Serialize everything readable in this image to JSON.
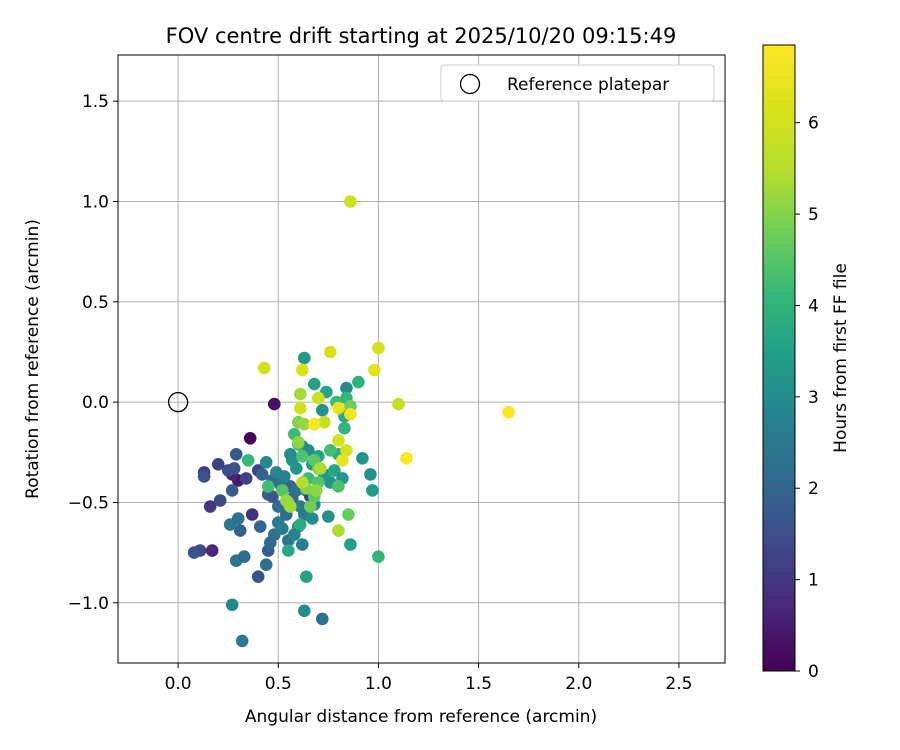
{
  "chart_data": {
    "type": "scatter",
    "title": "FOV centre drift starting at 2025/10/20 09:15:49",
    "xlabel": "Angular distance from reference (arcmin)",
    "ylabel": "Rotation from reference (arcmin)",
    "xlim": [
      -0.3,
      2.73
    ],
    "ylim": [
      -1.3,
      1.73
    ],
    "xticks": [
      0.0,
      0.5,
      1.0,
      1.5,
      2.0,
      2.5
    ],
    "xtick_labels": [
      "0.0",
      "0.5",
      "1.0",
      "1.5",
      "2.0",
      "2.5"
    ],
    "yticks": [
      -1.0,
      -0.5,
      0.0,
      0.5,
      1.0,
      1.5
    ],
    "ytick_labels": [
      "−1.0",
      "−0.5",
      "0.0",
      "0.5",
      "1.0",
      "1.5"
    ],
    "grid": true,
    "legend": {
      "position": "top-right",
      "entries": [
        {
          "label": "Reference platepar",
          "marker": "open-circle"
        }
      ]
    },
    "reference_point": {
      "x": 0.0,
      "y": 0.0
    },
    "colorbar": {
      "label": "Hours from first FF file",
      "min": 0,
      "max": 6.85,
      "ticks": [
        0,
        1,
        2,
        3,
        4,
        5,
        6
      ],
      "tick_labels": [
        "0",
        "1",
        "2",
        "3",
        "4",
        "5",
        "6"
      ],
      "colormap": "viridis"
    },
    "points": [
      {
        "x": 0.36,
        "y": -0.18,
        "t": 0.05
      },
      {
        "x": 0.48,
        "y": -0.01,
        "t": 0.3
      },
      {
        "x": 0.17,
        "y": -0.74,
        "t": 0.7
      },
      {
        "x": 0.3,
        "y": -0.39,
        "t": 0.4
      },
      {
        "x": 0.27,
        "y": -0.36,
        "t": 0.6
      },
      {
        "x": 0.13,
        "y": -0.35,
        "t": 1.1
      },
      {
        "x": 0.2,
        "y": -0.31,
        "t": 1.2
      },
      {
        "x": 0.16,
        "y": -0.52,
        "t": 1.0
      },
      {
        "x": 0.37,
        "y": -0.56,
        "t": 0.9
      },
      {
        "x": 0.34,
        "y": -0.38,
        "t": 1.2
      },
      {
        "x": 0.4,
        "y": -0.34,
        "t": 1.3
      },
      {
        "x": 0.11,
        "y": -0.74,
        "t": 1.4
      },
      {
        "x": 0.08,
        "y": -0.75,
        "t": 1.6
      },
      {
        "x": 0.21,
        "y": -0.49,
        "t": 1.4
      },
      {
        "x": 0.13,
        "y": -0.37,
        "t": 1.5
      },
      {
        "x": 0.25,
        "y": -0.34,
        "t": 1.5
      },
      {
        "x": 0.4,
        "y": -0.87,
        "t": 1.6
      },
      {
        "x": 0.27,
        "y": -0.44,
        "t": 1.8
      },
      {
        "x": 0.29,
        "y": -0.26,
        "t": 1.7
      },
      {
        "x": 0.28,
        "y": -0.33,
        "t": 1.6
      },
      {
        "x": 0.42,
        "y": -0.36,
        "t": 1.9
      },
      {
        "x": 0.45,
        "y": -0.46,
        "t": 2.0
      },
      {
        "x": 0.47,
        "y": -0.39,
        "t": 2.1
      },
      {
        "x": 0.5,
        "y": -0.52,
        "t": 2.2
      },
      {
        "x": 0.31,
        "y": -0.64,
        "t": 1.9
      },
      {
        "x": 0.29,
        "y": -0.79,
        "t": 2.4
      },
      {
        "x": 0.33,
        "y": -0.77,
        "t": 2.1
      },
      {
        "x": 0.26,
        "y": -0.61,
        "t": 2.5
      },
      {
        "x": 0.3,
        "y": -0.58,
        "t": 2.3
      },
      {
        "x": 0.41,
        "y": -0.62,
        "t": 2.0
      },
      {
        "x": 0.44,
        "y": -0.81,
        "t": 2.2
      },
      {
        "x": 0.45,
        "y": -0.74,
        "t": 1.8
      },
      {
        "x": 0.46,
        "y": -0.7,
        "t": 2.1
      },
      {
        "x": 0.48,
        "y": -0.66,
        "t": 2.3
      },
      {
        "x": 0.5,
        "y": -0.6,
        "t": 2.5
      },
      {
        "x": 0.52,
        "y": -0.63,
        "t": 2.6
      },
      {
        "x": 0.55,
        "y": -0.69,
        "t": 2.4
      },
      {
        "x": 0.54,
        "y": -0.56,
        "t": 2.2
      },
      {
        "x": 0.57,
        "y": -0.48,
        "t": 2.0
      },
      {
        "x": 0.56,
        "y": -0.42,
        "t": 1.9
      },
      {
        "x": 0.59,
        "y": -0.44,
        "t": 2.3
      },
      {
        "x": 0.47,
        "y": -0.47,
        "t": 1.7
      },
      {
        "x": 0.51,
        "y": -0.41,
        "t": 2.4
      },
      {
        "x": 0.53,
        "y": -0.37,
        "t": 2.7
      },
      {
        "x": 0.49,
        "y": -0.35,
        "t": 2.8
      },
      {
        "x": 0.44,
        "y": -0.3,
        "t": 2.9
      },
      {
        "x": 0.61,
        "y": -0.52,
        "t": 2.6
      },
      {
        "x": 0.63,
        "y": -0.56,
        "t": 2.5
      },
      {
        "x": 0.64,
        "y": -0.44,
        "t": 2.7
      },
      {
        "x": 0.66,
        "y": -0.47,
        "t": 1.2
      },
      {
        "x": 0.68,
        "y": -0.51,
        "t": 2.9
      },
      {
        "x": 0.6,
        "y": -0.62,
        "t": 3.0
      },
      {
        "x": 0.58,
        "y": -0.66,
        "t": 2.8
      },
      {
        "x": 0.62,
        "y": -0.71,
        "t": 2.7
      },
      {
        "x": 0.67,
        "y": -0.58,
        "t": 3.0
      },
      {
        "x": 0.27,
        "y": -1.01,
        "t": 2.9
      },
      {
        "x": 0.32,
        "y": -1.19,
        "t": 2.5
      },
      {
        "x": 0.63,
        "y": -1.04,
        "t": 3.0
      },
      {
        "x": 0.72,
        "y": -1.08,
        "t": 2.3
      },
      {
        "x": 0.56,
        "y": -0.26,
        "t": 3.0
      },
      {
        "x": 0.57,
        "y": -0.29,
        "t": 3.1
      },
      {
        "x": 0.59,
        "y": -0.33,
        "t": 3.2
      },
      {
        "x": 0.62,
        "y": -0.22,
        "t": 2.9
      },
      {
        "x": 0.65,
        "y": -0.24,
        "t": 3.0
      },
      {
        "x": 0.67,
        "y": -0.31,
        "t": 3.3
      },
      {
        "x": 0.7,
        "y": -0.27,
        "t": 3.5
      },
      {
        "x": 0.73,
        "y": -0.36,
        "t": 3.4
      },
      {
        "x": 0.76,
        "y": -0.4,
        "t": 3.2
      },
      {
        "x": 0.78,
        "y": -0.34,
        "t": 3.6
      },
      {
        "x": 0.75,
        "y": -0.57,
        "t": 3.1
      },
      {
        "x": 0.82,
        "y": -0.38,
        "t": 3.3
      },
      {
        "x": 0.86,
        "y": -0.71,
        "t": 3.5
      },
      {
        "x": 0.92,
        "y": -0.28,
        "t": 3.2
      },
      {
        "x": 0.96,
        "y": -0.36,
        "t": 3.1
      },
      {
        "x": 0.97,
        "y": -0.44,
        "t": 3.4
      },
      {
        "x": 0.63,
        "y": 0.22,
        "t": 3.3
      },
      {
        "x": 0.68,
        "y": 0.09,
        "t": 3.5
      },
      {
        "x": 0.72,
        "y": -0.04,
        "t": 3.2
      },
      {
        "x": 0.74,
        "y": 0.05,
        "t": 3.6
      },
      {
        "x": 0.84,
        "y": 0.07,
        "t": 3.0
      },
      {
        "x": 0.83,
        "y": -0.07,
        "t": 3.7
      },
      {
        "x": 0.8,
        "y": -0.26,
        "t": 3.8
      },
      {
        "x": 0.83,
        "y": -0.13,
        "t": 4.0
      },
      {
        "x": 0.84,
        "y": 0.02,
        "t": 4.1
      },
      {
        "x": 0.79,
        "y": 0.0,
        "t": 4.2
      },
      {
        "x": 0.9,
        "y": 0.1,
        "t": 4.0
      },
      {
        "x": 0.76,
        "y": -0.24,
        "t": 4.3
      },
      {
        "x": 0.64,
        "y": -0.87,
        "t": 3.6
      },
      {
        "x": 0.55,
        "y": -0.74,
        "t": 3.7
      },
      {
        "x": 1.0,
        "y": -0.77,
        "t": 4.0
      },
      {
        "x": 0.61,
        "y": -0.61,
        "t": 3.8
      },
      {
        "x": 0.58,
        "y": -0.16,
        "t": 4.2
      },
      {
        "x": 0.6,
        "y": -0.21,
        "t": 4.3
      },
      {
        "x": 0.62,
        "y": -0.27,
        "t": 4.4
      },
      {
        "x": 0.65,
        "y": -0.38,
        "t": 4.2
      },
      {
        "x": 0.7,
        "y": -0.4,
        "t": 4.5
      },
      {
        "x": 0.68,
        "y": -0.47,
        "t": 4.6
      },
      {
        "x": 0.35,
        "y": -0.29,
        "t": 4.1
      },
      {
        "x": 0.45,
        "y": -0.42,
        "t": 4.3
      },
      {
        "x": 0.52,
        "y": -0.44,
        "t": 4.5
      },
      {
        "x": 0.55,
        "y": -0.5,
        "t": 4.7
      },
      {
        "x": 0.66,
        "y": -0.52,
        "t": 4.8
      },
      {
        "x": 0.8,
        "y": -0.42,
        "t": 4.4
      },
      {
        "x": 0.85,
        "y": -0.56,
        "t": 4.7
      },
      {
        "x": 0.86,
        "y": -0.02,
        "t": 4.8
      },
      {
        "x": 0.7,
        "y": -0.33,
        "t": 4.9
      },
      {
        "x": 0.68,
        "y": -0.29,
        "t": 4.6
      },
      {
        "x": 0.64,
        "y": -0.43,
        "t": 5.0
      },
      {
        "x": 0.6,
        "y": -0.1,
        "t": 5.0
      },
      {
        "x": 0.6,
        "y": -0.2,
        "t": 5.1
      },
      {
        "x": 0.63,
        "y": -0.11,
        "t": 5.2
      },
      {
        "x": 0.69,
        "y": -0.44,
        "t": 5.1
      },
      {
        "x": 0.54,
        "y": -0.49,
        "t": 5.2
      },
      {
        "x": 0.56,
        "y": -0.52,
        "t": 5.3
      },
      {
        "x": 0.61,
        "y": 0.04,
        "t": 5.3
      },
      {
        "x": 0.8,
        "y": -0.64,
        "t": 5.4
      },
      {
        "x": 0.62,
        "y": -0.4,
        "t": 5.5
      },
      {
        "x": 0.71,
        "y": -0.33,
        "t": 5.4
      },
      {
        "x": 0.73,
        "y": -0.1,
        "t": 5.8
      },
      {
        "x": 0.7,
        "y": 0.02,
        "t": 5.9
      },
      {
        "x": 0.61,
        "y": -0.03,
        "t": 6.0
      },
      {
        "x": 0.8,
        "y": -0.19,
        "t": 6.0
      },
      {
        "x": 0.84,
        "y": -0.24,
        "t": 6.1
      },
      {
        "x": 0.86,
        "y": 1.0,
        "t": 5.9
      },
      {
        "x": 0.43,
        "y": 0.17,
        "t": 6.0
      },
      {
        "x": 0.62,
        "y": 0.16,
        "t": 6.2
      },
      {
        "x": 0.76,
        "y": 0.25,
        "t": 6.1
      },
      {
        "x": 1.0,
        "y": 0.27,
        "t": 6.1
      },
      {
        "x": 1.1,
        "y": -0.01,
        "t": 5.8
      },
      {
        "x": 0.98,
        "y": 0.16,
        "t": 6.3
      },
      {
        "x": 0.82,
        "y": -0.29,
        "t": 6.4
      },
      {
        "x": 0.86,
        "y": -0.06,
        "t": 6.6
      },
      {
        "x": 0.8,
        "y": -0.03,
        "t": 6.5
      },
      {
        "x": 0.68,
        "y": -0.11,
        "t": 6.7
      },
      {
        "x": 1.14,
        "y": -0.28,
        "t": 6.8
      },
      {
        "x": 1.65,
        "y": -0.05,
        "t": 6.8
      }
    ]
  }
}
